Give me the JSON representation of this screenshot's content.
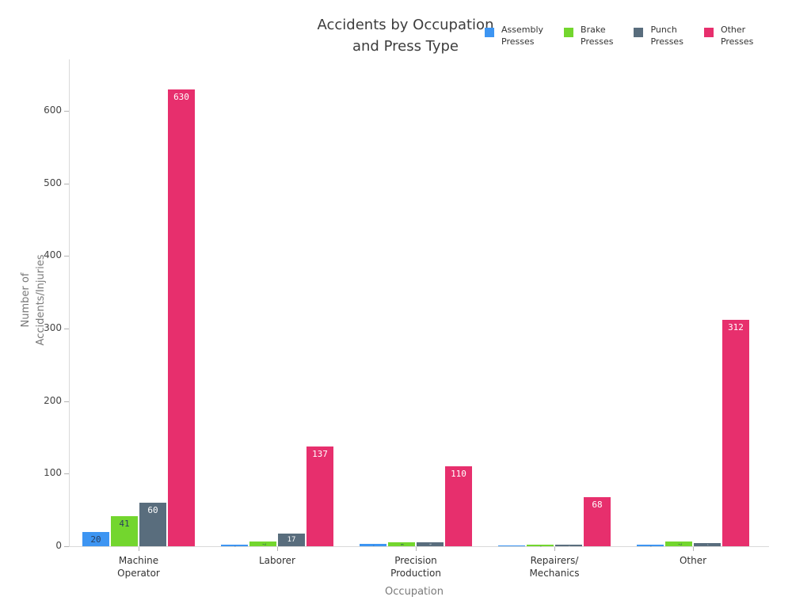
{
  "chart_data": {
    "type": "bar",
    "title": "Accidents by Occupation and Press Type",
    "title_lines": [
      "Accidents by Occupation",
      "and Press Type"
    ],
    "xlabel": "Occupation",
    "ylabel": "Number of Accidents/Injuries",
    "ylabel_lines": [
      "Number of",
      "Accidents/Injuries"
    ],
    "categories": [
      "Machine Operator",
      "Laborer",
      "Precision Production",
      "Repairers/Mechanics",
      "Other"
    ],
    "category_label_lines": [
      [
        "Machine",
        "Operator"
      ],
      [
        "Laborer"
      ],
      [
        "Precision",
        "Production"
      ],
      [
        "Repairers/",
        "Mechanics"
      ],
      [
        "Other"
      ]
    ],
    "series": [
      {
        "name": "Assembly Presses",
        "label_lines": [
          "Assembly",
          "Presses"
        ],
        "color": "#3d95f2",
        "label_text_color": "#2a3f5f",
        "values": [
          20,
          2,
          3,
          1,
          2
        ]
      },
      {
        "name": "Brake Presses",
        "label_lines": [
          "Brake",
          "Presses"
        ],
        "color": "#73d62e",
        "label_text_color": "#2a3f5f",
        "values": [
          41,
          7,
          6,
          2,
          7
        ]
      },
      {
        "name": "Punch Presses",
        "label_lines": [
          "Punch",
          "Presses"
        ],
        "color": "#596d7d",
        "label_text_color": "#ffffff",
        "values": [
          60,
          17,
          5,
          2,
          4
        ]
      },
      {
        "name": "Other Presses",
        "label_lines": [
          "Other",
          "Presses"
        ],
        "color": "#e72f6d",
        "label_text_color": "#ffffff",
        "values": [
          630,
          137,
          110,
          68,
          312
        ]
      }
    ],
    "yticks": [
      0,
      100,
      200,
      300,
      400,
      500,
      600
    ],
    "ylim": [
      0,
      670
    ],
    "bar_value_labels_shown": [
      "20",
      "41",
      "60",
      "630",
      "17",
      "137",
      "110",
      "68",
      "312"
    ],
    "legend_position": "top-right",
    "grid": false,
    "background_color": "#ffffff",
    "axis_line_color": "#d9d9d9",
    "tick_color": "#b3b3b3",
    "tick_label_color": "#444444",
    "title_color": "#3d3d3d",
    "axis_title_color": "#7a7a7a"
  }
}
